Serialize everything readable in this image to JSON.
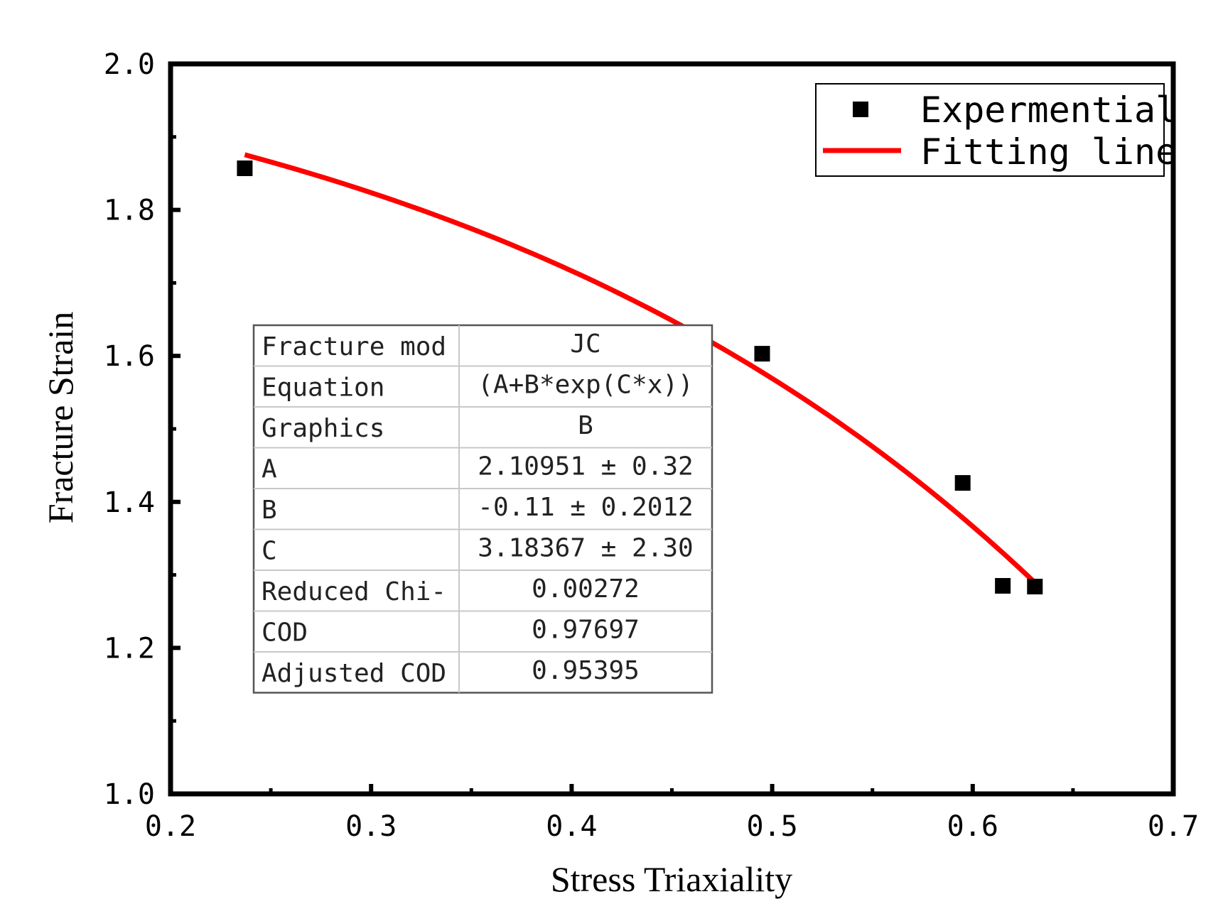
{
  "chart_data": {
    "type": "scatter",
    "xlabel": "Stress Triaxiality",
    "ylabel": "Fracture Strain",
    "xlim": [
      0.2,
      0.7
    ],
    "ylim": [
      1.0,
      2.0
    ],
    "x_ticks": [
      "0.2",
      "0.3",
      "0.4",
      "0.5",
      "0.6",
      "0.7"
    ],
    "y_ticks": [
      "1.0",
      "1.2",
      "1.4",
      "1.6",
      "1.8",
      "2.0"
    ],
    "grid": false,
    "legend_position": "top-right",
    "series": [
      {
        "name": "Expermential",
        "kind": "scatter",
        "marker": "square",
        "color": "#000000",
        "x": [
          0.237,
          0.495,
          0.595,
          0.615,
          0.631
        ],
        "y": [
          1.857,
          1.603,
          1.426,
          1.285,
          1.284
        ]
      },
      {
        "name": "Fitting line",
        "kind": "line",
        "color": "#ff0000",
        "equation": "(A+B*exp(C*x))",
        "params": {
          "A": 2.10951,
          "B": -0.11,
          "C": 3.18367
        },
        "x_range": [
          0.237,
          0.631
        ]
      }
    ],
    "fit_table": {
      "rows": [
        {
          "label": "Fracture mod",
          "value": "JC"
        },
        {
          "label": "Equation",
          "value": "(A+B*exp(C*x))"
        },
        {
          "label": "Graphics",
          "value": "B"
        },
        {
          "label": "A",
          "value": "2.10951 ± 0.32"
        },
        {
          "label": "B",
          "value": "-0.11 ± 0.2012"
        },
        {
          "label": "C",
          "value": "3.18367 ± 2.30"
        },
        {
          "label": "Reduced Chi-",
          "value": "0.00272"
        },
        {
          "label": "COD",
          "value": "0.97697"
        },
        {
          "label": "Adjusted COD",
          "value": "0.95395"
        }
      ]
    }
  }
}
